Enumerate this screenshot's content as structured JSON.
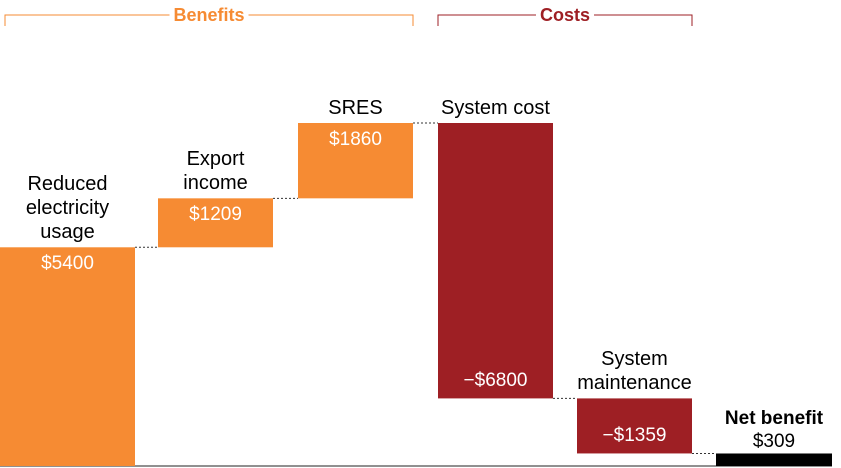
{
  "chart_data": {
    "type": "waterfall",
    "categories": [
      "Reduced electricity usage",
      "Export income",
      "SRES",
      "System cost",
      "System maintenance",
      "Net benefit"
    ],
    "values": [
      5400,
      1209,
      1860,
      -6800,
      -1359,
      309
    ],
    "value_labels": [
      "$5400",
      "$1209",
      "$1860",
      "−$6800",
      "−$1359",
      "$309"
    ],
    "measures": [
      "relative",
      "relative",
      "relative",
      "relative",
      "relative",
      "total"
    ],
    "colors": [
      "#f68b33",
      "#f68b33",
      "#f68b33",
      "#9e1f24",
      "#9e1f24",
      "#000000"
    ],
    "groups": [
      {
        "label": "Benefits",
        "color": "#f68b33"
      },
      {
        "label": "Costs",
        "color": "#9e1f24"
      }
    ]
  }
}
